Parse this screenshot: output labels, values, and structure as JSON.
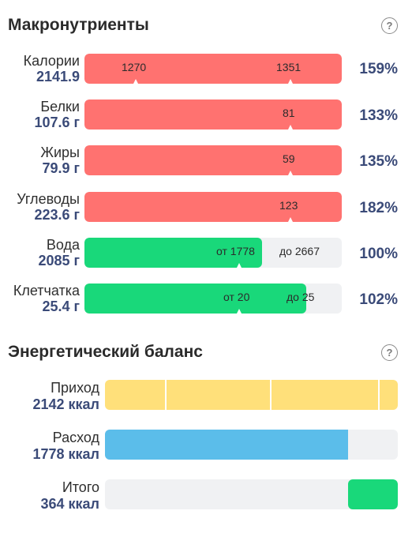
{
  "macros": {
    "title": "Макронутриенты",
    "help_icon": "?",
    "rows": [
      {
        "name": "Калории",
        "value": "2141.9",
        "percent": "159%",
        "fill_fraction": 1.0,
        "color": "#ff7270",
        "markers": [
          "1270",
          "1351"
        ]
      },
      {
        "name": "Белки",
        "value": "107.6 г",
        "percent": "133%",
        "fill_fraction": 1.0,
        "color": "#ff7270",
        "markers": [
          "81"
        ]
      },
      {
        "name": "Жиры",
        "value": "79.9 г",
        "percent": "135%",
        "fill_fraction": 1.0,
        "color": "#ff7270",
        "markers": [
          "59"
        ]
      },
      {
        "name": "Углеводы",
        "value": "223.6 г",
        "percent": "182%",
        "fill_fraction": 1.0,
        "color": "#ff7270",
        "markers": [
          "123"
        ]
      },
      {
        "name": "Вода",
        "value": "2085 г",
        "percent": "100%",
        "fill_fraction": 0.69,
        "color": "#19d87a",
        "markers": [
          "от 1778",
          "до 2667"
        ]
      },
      {
        "name": "Клетчатка",
        "value": "25.4 г",
        "percent": "102%",
        "fill_fraction": 0.86,
        "color": "#19d87a",
        "markers": [
          "от 20",
          "до 25"
        ]
      }
    ]
  },
  "balance": {
    "title": "Энергетический баланс",
    "help_icon": "?",
    "rows": [
      {
        "name": "Приход",
        "value": "2142 ккал",
        "color": "#ffe07a"
      },
      {
        "name": "Расход",
        "value": "1778 ккал",
        "color": "#5bbdea"
      },
      {
        "name": "Итого",
        "value": "364 ккал",
        "color": "#19d87a"
      }
    ]
  }
}
